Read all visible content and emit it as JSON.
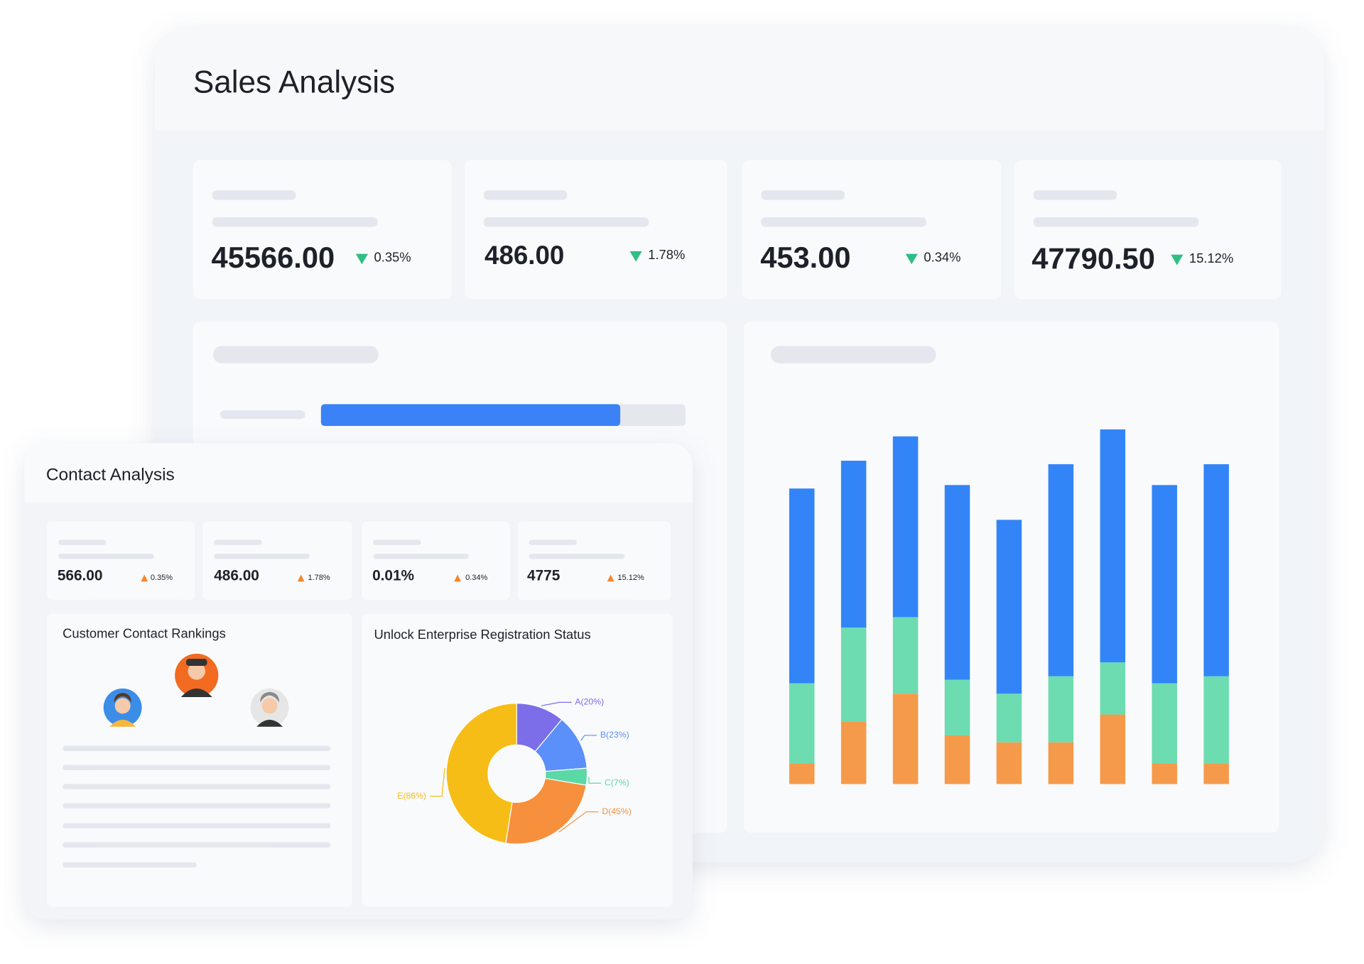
{
  "sales_analysis": {
    "title": "Sales Analysis",
    "kpis": [
      {
        "value": "45566.00",
        "change": "0.35%"
      },
      {
        "value": "486.00",
        "change": "1.78%"
      },
      {
        "value": "453.00",
        "change": "0.34%"
      },
      {
        "value": "47790.50",
        "change": "15.12%"
      }
    ]
  },
  "contact_analysis": {
    "title": "Contact Analysis",
    "kpis": [
      {
        "value": "566.00",
        "change": "0.35%"
      },
      {
        "value": "486.00",
        "change": "1.78%"
      },
      {
        "value": "0.01%",
        "change": "0.34%"
      },
      {
        "value": "4775",
        "change": "15.12%"
      }
    ],
    "rankings_title": "Customer Contact Rankings"
  },
  "chart_data": [
    {
      "type": "bar",
      "stacked": true,
      "categories": [
        null,
        null,
        null,
        null,
        null,
        null,
        null,
        null,
        null
      ],
      "series": [
        {
          "color": "#f59a4a",
          "values": [
            6,
            18,
            26,
            14,
            12,
            12,
            20,
            6,
            6
          ]
        },
        {
          "color": "#6ddcb0",
          "values": [
            23,
            27,
            22,
            16,
            14,
            19,
            15,
            23,
            25
          ]
        },
        {
          "color": "#3385f7",
          "values": [
            56,
            48,
            52,
            56,
            50,
            61,
            67,
            57,
            61
          ]
        }
      ],
      "ylim": [
        0,
        110
      ]
    },
    {
      "type": "pie",
      "title": "Unlock Enterprise Registration Status",
      "categories": [
        "A(20%)",
        "B(23%)",
        "C(7%)",
        "D(45%)",
        "E(86%)"
      ],
      "values": [
        20,
        23,
        7,
        45,
        86
      ],
      "colors": [
        "#7b6ee8",
        "#5b8ff9",
        "#5ad8a6",
        "#f6903d",
        "#f6bd16"
      ]
    }
  ]
}
